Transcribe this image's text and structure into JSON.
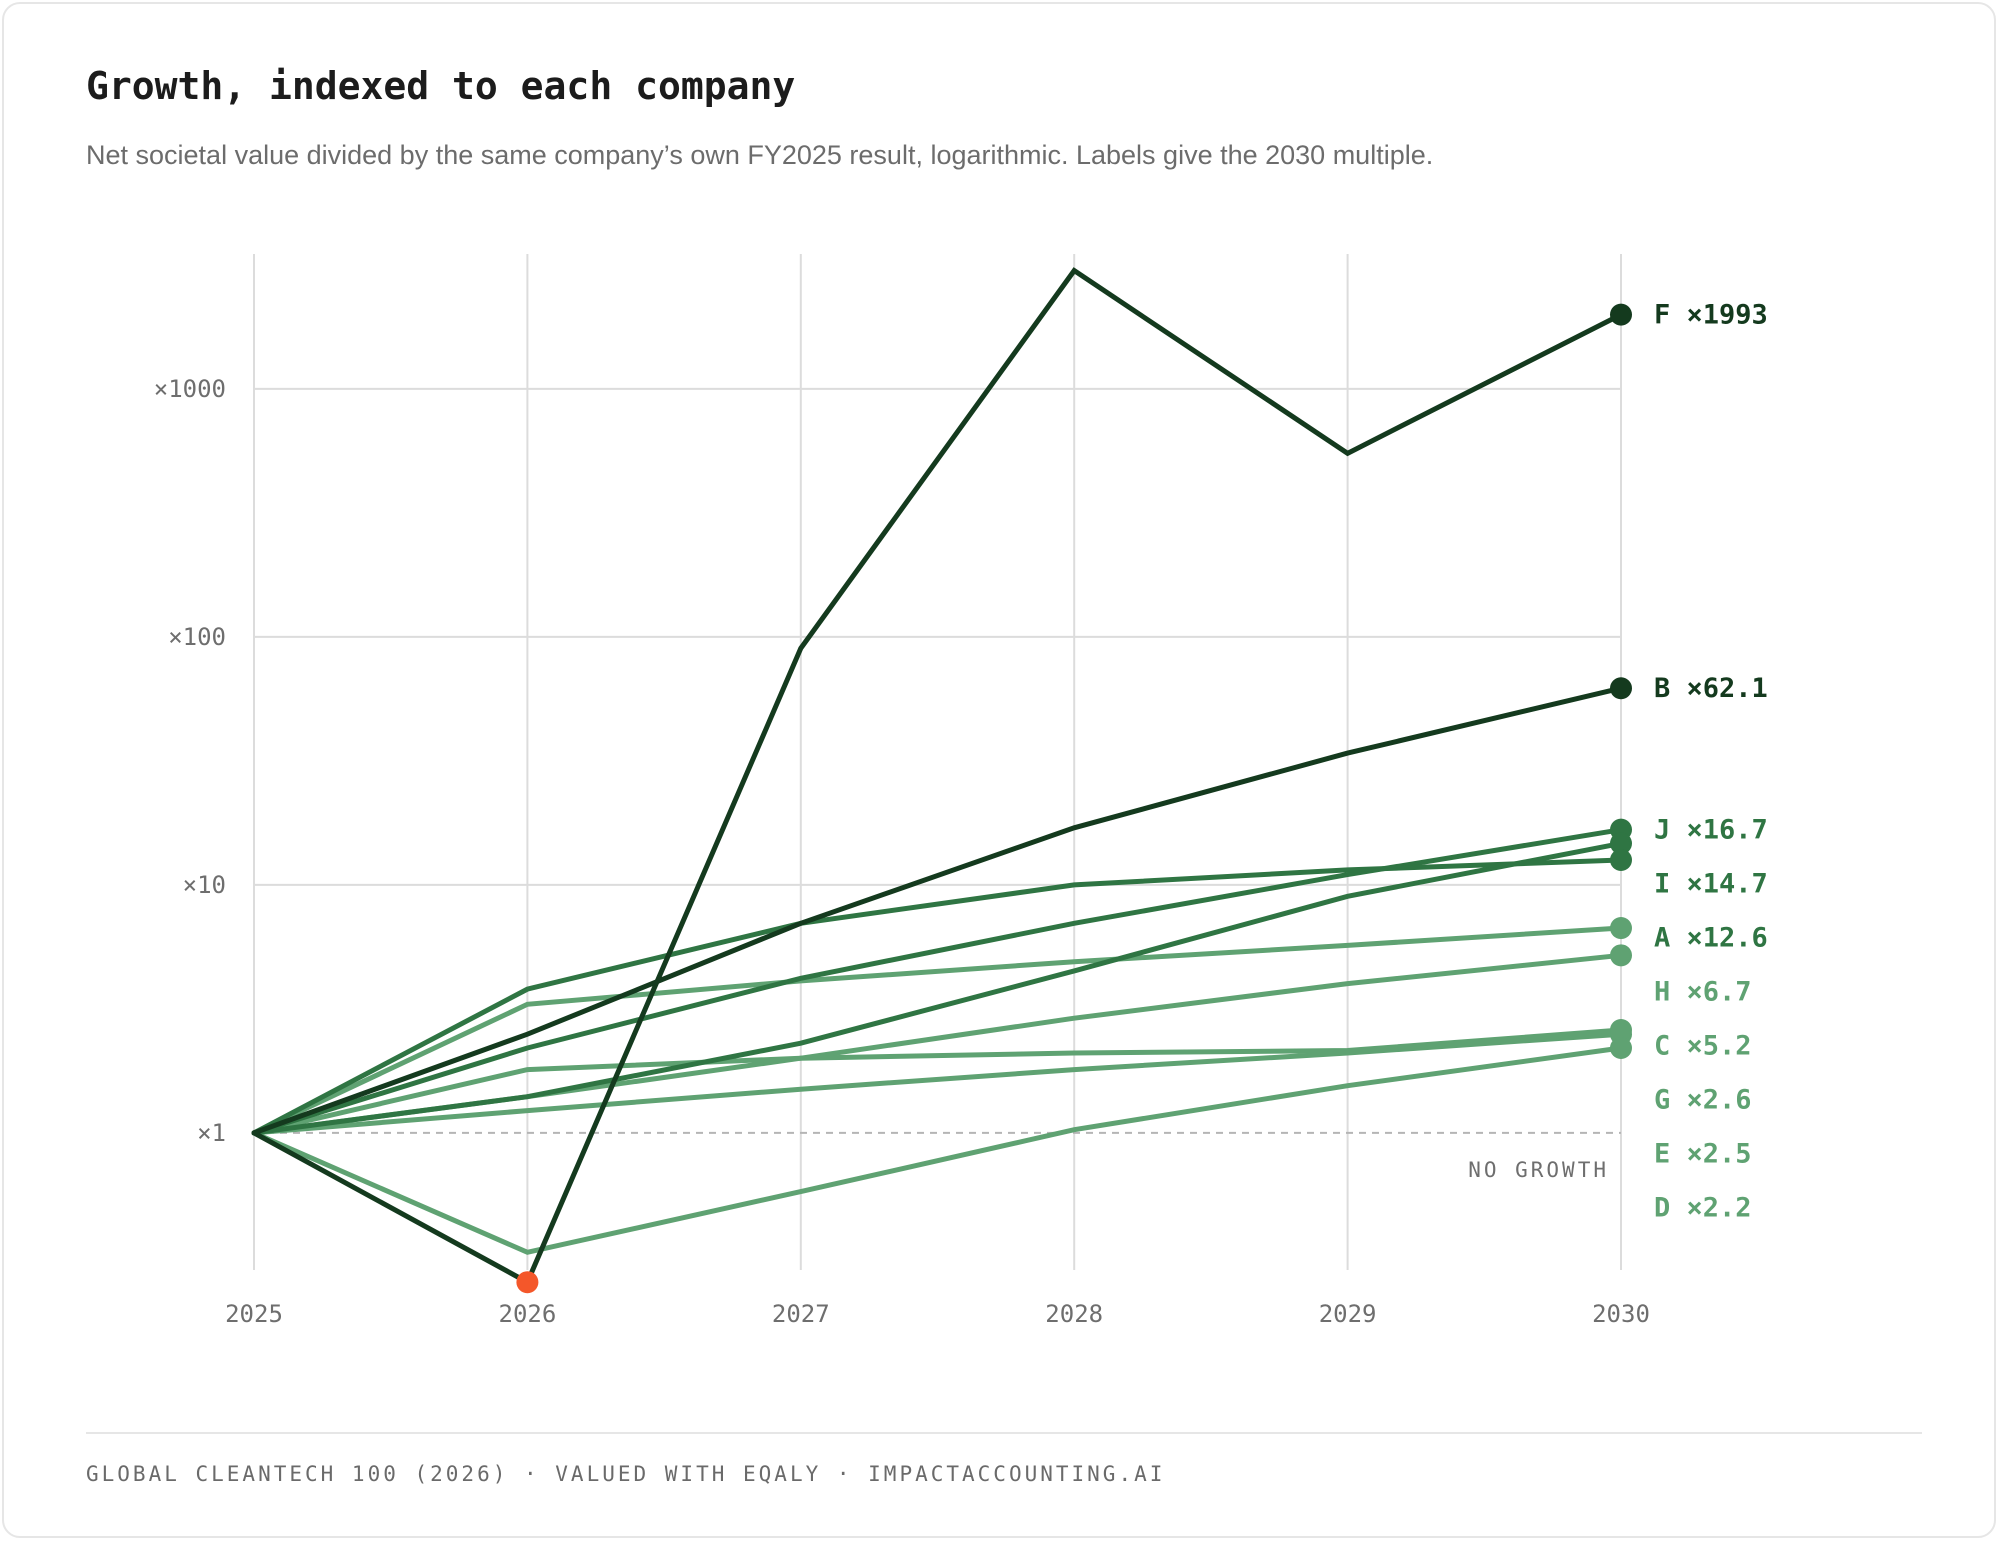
{
  "header": {
    "title": "Growth, indexed to each company",
    "subtitle": "Net societal value divided by the same company’s own FY2025 result, logarithmic. Labels give the 2030 multiple."
  },
  "footer": {
    "source": "GLOBAL CLEANTECH 100 (2026) · VALUED WITH EQALY · IMPACTACCOUNTING.AI"
  },
  "colors": {
    "dark": "#143a1e",
    "mid": "#2f7543",
    "light": "#5fa272",
    "highlight": "#f4572a",
    "grid": "#dcdcdc",
    "baseline": "#b5b5b5"
  },
  "chart_data": {
    "type": "line",
    "x": [
      2025,
      2026,
      2027,
      2028,
      2029,
      2030
    ],
    "xlim": [
      2025,
      2030
    ],
    "ylim": [
      0.28,
      3500
    ],
    "yscale": "log",
    "yticks": [
      {
        "value": 1,
        "label": "×1"
      },
      {
        "value": 10,
        "label": "×10"
      },
      {
        "value": 100,
        "label": "×100"
      },
      {
        "value": 1000,
        "label": "×1000"
      }
    ],
    "xticks": [
      "2025",
      "2026",
      "2027",
      "2028",
      "2029",
      "2030"
    ],
    "grid": true,
    "reference_line": {
      "value": 1,
      "label": "NO GROWTH"
    },
    "series": [
      {
        "name": "F",
        "label": "F ×1993",
        "tone": "dark",
        "values": [
          1,
          0.25,
          90,
          3000,
          550,
          1993
        ]
      },
      {
        "name": "B",
        "label": "B ×62.1",
        "tone": "dark",
        "values": [
          1,
          2.5,
          7,
          17,
          34,
          62.1
        ]
      },
      {
        "name": "J",
        "label": "J ×16.7",
        "tone": "mid",
        "values": [
          1,
          2.2,
          4.2,
          7,
          11,
          16.7
        ]
      },
      {
        "name": "I",
        "label": "I ×14.7",
        "tone": "mid",
        "values": [
          1,
          1.4,
          2.3,
          4.5,
          9,
          14.7
        ]
      },
      {
        "name": "A",
        "label": "A ×12.6",
        "tone": "mid",
        "values": [
          1,
          3.8,
          7,
          10,
          11.5,
          12.6
        ]
      },
      {
        "name": "H",
        "label": "H ×6.7",
        "tone": "light",
        "values": [
          1,
          3.3,
          4.1,
          4.9,
          5.7,
          6.7
        ]
      },
      {
        "name": "C",
        "label": "C ×5.2",
        "tone": "light",
        "values": [
          1,
          1.4,
          2,
          2.9,
          4,
          5.2
        ]
      },
      {
        "name": "G",
        "label": "G ×2.6",
        "tone": "light",
        "values": [
          1,
          1.8,
          2,
          2.1,
          2.15,
          2.6
        ]
      },
      {
        "name": "E",
        "label": "E ×2.5",
        "tone": "light",
        "values": [
          1,
          1.23,
          1.5,
          1.8,
          2.1,
          2.5
        ]
      },
      {
        "name": "D",
        "label": "D ×2.2",
        "tone": "light",
        "values": [
          1,
          0.33,
          0.58,
          1.03,
          1.55,
          2.2
        ]
      }
    ],
    "highlight_point": {
      "series": "F",
      "x": 2026,
      "value": 0.25
    }
  }
}
